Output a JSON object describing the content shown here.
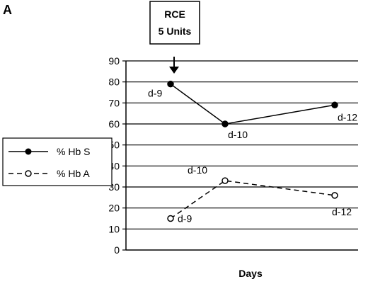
{
  "panel_label": "A",
  "annotation": {
    "line1": "RCE",
    "line2": "5 Units"
  },
  "legend": {
    "items": [
      "% Hb S",
      "% Hb A"
    ]
  },
  "chart_data": {
    "type": "line",
    "title": "",
    "xlabel": "Days",
    "ylabel": "",
    "ylim": [
      0,
      90
    ],
    "yticks": [
      0,
      10,
      20,
      30,
      40,
      50,
      60,
      70,
      80,
      90
    ],
    "grid": "horizontal",
    "legend_position": "left",
    "x": [
      0,
      1,
      2
    ],
    "series": [
      {
        "name": "% Hb S",
        "style": "solid",
        "marker": "filled-circle",
        "values": [
          79,
          60,
          69
        ],
        "labels": [
          "d-9",
          "d-10",
          "d-12"
        ]
      },
      {
        "name": "% Hb A",
        "style": "dashed",
        "marker": "open-circle",
        "values": [
          15,
          33,
          26
        ],
        "labels": [
          "d-9",
          "d-10",
          "d-12"
        ]
      }
    ]
  }
}
